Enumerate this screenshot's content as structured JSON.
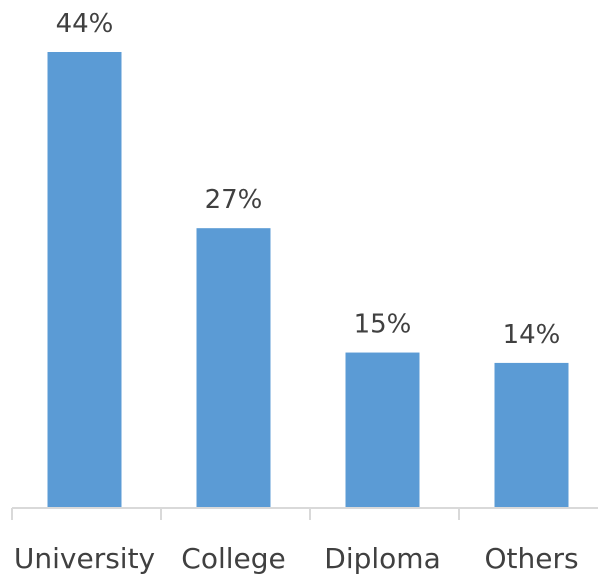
{
  "chart_data": {
    "type": "bar",
    "title": "",
    "xlabel": "",
    "ylabel": "",
    "categories": [
      "University",
      "College",
      "Diploma",
      "Others"
    ],
    "values": [
      44,
      27,
      15,
      14
    ],
    "labels": [
      "44%",
      "27%",
      "15%",
      "14%"
    ],
    "unit": "%",
    "ylim": [
      0,
      44
    ],
    "grid": false,
    "legend": "none",
    "bar_color": "#5B9BD5",
    "axis_color": "#D9D9D9",
    "text_color": "#404040"
  }
}
